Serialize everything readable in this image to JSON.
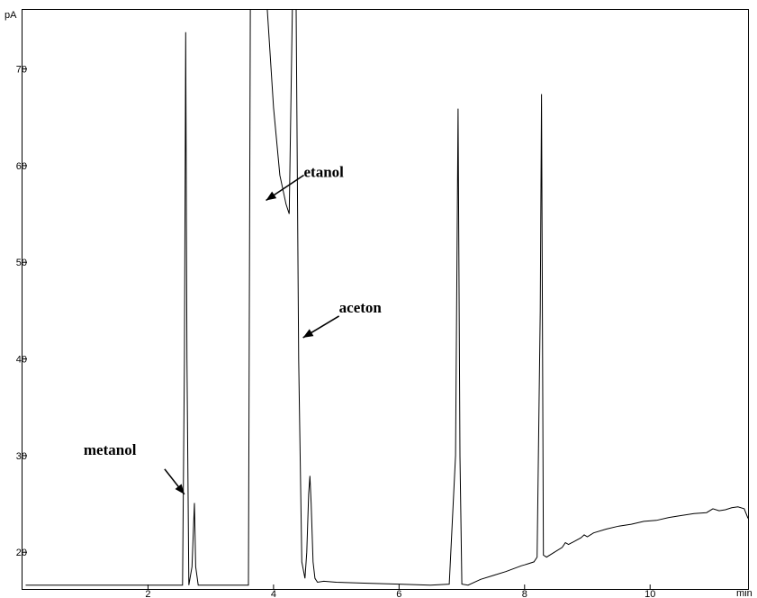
{
  "chart_data": {
    "type": "line",
    "title": "",
    "xlabel": "",
    "ylabel": "",
    "x_unit": "min",
    "y_unit": "pA",
    "xlim": [
      0,
      11.56
    ],
    "ylim": [
      16.2,
      76.2
    ],
    "x_ticks": [
      2,
      4,
      6,
      8,
      10
    ],
    "y_ticks": [
      20,
      30,
      40,
      50,
      60,
      70
    ],
    "grid": false,
    "legend": "none",
    "line_color": "#000000",
    "series": [
      {
        "x": [
          0.05,
          1.0,
          2.0,
          2.4,
          2.55,
          2.58,
          2.6,
          2.62,
          2.65,
          2.7,
          2.74,
          2.76,
          2.8,
          3.0,
          3.5,
          3.6,
          3.63,
          3.65,
          3.7,
          3.75,
          3.8,
          3.85,
          3.9,
          4.0,
          4.1,
          4.2,
          4.25,
          4.3,
          4.33,
          4.36,
          4.4,
          4.45,
          4.5,
          4.53,
          4.56,
          4.58,
          4.6,
          4.63,
          4.66,
          4.7,
          4.8,
          5.0,
          5.5,
          6.0,
          6.5,
          6.8,
          6.9,
          6.94,
          6.97,
          7.0,
          7.1,
          7.3,
          7.5,
          7.7,
          7.95,
          8.0,
          8.05,
          8.15,
          8.2,
          8.25,
          8.27,
          8.3,
          8.35,
          8.6,
          8.65,
          8.7,
          8.9,
          8.95,
          9.0,
          9.1,
          9.3,
          9.5,
          9.7,
          9.9,
          10.1,
          10.3,
          10.5,
          10.7,
          10.9,
          11.0,
          11.1,
          11.2,
          11.3,
          11.4,
          11.5,
          11.56
        ],
        "y": [
          16.6,
          16.6,
          16.6,
          16.6,
          16.6,
          40.0,
          73.8,
          40.0,
          16.6,
          18.5,
          25.1,
          18.5,
          16.6,
          16.6,
          16.6,
          16.6,
          76.2,
          76.2,
          76.2,
          76.2,
          76.2,
          76.2,
          76.2,
          66.0,
          59.0,
          56.0,
          55.0,
          76.2,
          76.2,
          76.2,
          40.0,
          19.0,
          17.3,
          20.0,
          26.0,
          27.9,
          25.0,
          19.0,
          17.3,
          16.9,
          17.0,
          16.9,
          16.8,
          16.7,
          16.6,
          16.7,
          30.0,
          65.9,
          30.0,
          16.7,
          16.6,
          17.2,
          17.6,
          18.0,
          18.6,
          18.7,
          18.8,
          19.0,
          19.5,
          45.0,
          67.4,
          19.7,
          19.5,
          20.5,
          21.0,
          20.8,
          21.5,
          21.8,
          21.6,
          22.0,
          22.4,
          22.7,
          22.9,
          23.2,
          23.3,
          23.6,
          23.8,
          24.0,
          24.1,
          24.5,
          24.3,
          24.4,
          24.6,
          24.7,
          24.5,
          23.5
        ]
      }
    ],
    "annotations": [
      {
        "text": "metanol",
        "x": 2.58,
        "y": 26.0
      },
      {
        "text": "etanol",
        "x": 3.88,
        "y": 56.4
      },
      {
        "text": "aceton",
        "x": 4.47,
        "y": 42.2
      }
    ]
  }
}
